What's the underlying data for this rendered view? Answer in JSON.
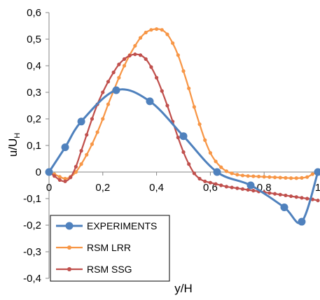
{
  "chart_data": {
    "type": "line",
    "xlabel": "y/H",
    "ylabel": {
      "main": "u/U",
      "sub": "H"
    },
    "xlim": [
      0,
      1
    ],
    "ylim": [
      -0.4,
      0.6
    ],
    "grid": "none",
    "legend_position": "bottom-left",
    "x_ticks": [
      {
        "v": 0,
        "label": "0"
      },
      {
        "v": 0.2,
        "label": "0,2"
      },
      {
        "v": 0.4,
        "label": "0,4"
      },
      {
        "v": 0.6,
        "label": "0,6"
      },
      {
        "v": 0.8,
        "label": "0,8"
      },
      {
        "v": 1,
        "label": "1"
      }
    ],
    "y_ticks": [
      {
        "v": 0.6,
        "label": "0,6"
      },
      {
        "v": 0.5,
        "label": "0,5"
      },
      {
        "v": 0.4,
        "label": "0,4"
      },
      {
        "v": 0.3,
        "label": "0,3"
      },
      {
        "v": 0.2,
        "label": "0,2"
      },
      {
        "v": 0.1,
        "label": "0,1"
      },
      {
        "v": 0,
        "label": "0"
      },
      {
        "v": -0.1,
        "label": "-0,1"
      },
      {
        "v": -0.2,
        "label": "-0,2"
      },
      {
        "v": -0.3,
        "label": "-0,3"
      },
      {
        "v": -0.4,
        "label": "-0,4"
      }
    ],
    "series": [
      {
        "name": "EXPERIMENTS",
        "color": "#4f81bd",
        "marker_size": "large",
        "x": [
          0,
          0.06,
          0.12,
          0.25,
          0.375,
          0.5,
          0.625,
          0.75,
          0.875,
          0.94,
          1.0
        ],
        "y": [
          0.0,
          0.093,
          0.19,
          0.308,
          0.266,
          0.135,
          0.0,
          -0.05,
          -0.133,
          -0.187,
          0.0
        ]
      },
      {
        "name": "RSM LRR",
        "color": "#f79646",
        "marker_size": "small",
        "x": [
          0,
          0.02,
          0.04,
          0.06,
          0.08,
          0.1,
          0.12,
          0.14,
          0.16,
          0.18,
          0.2,
          0.22,
          0.24,
          0.26,
          0.28,
          0.3,
          0.32,
          0.34,
          0.36,
          0.38,
          0.4,
          0.42,
          0.44,
          0.46,
          0.48,
          0.5,
          0.52,
          0.54,
          0.56,
          0.58,
          0.6,
          0.62,
          0.64,
          0.66,
          0.68,
          0.7,
          0.72,
          0.74,
          0.76,
          0.78,
          0.8,
          0.82,
          0.84,
          0.86,
          0.88,
          0.9,
          0.92,
          0.94,
          0.96,
          0.98,
          1.0
        ],
        "y": [
          0.0,
          -0.008,
          -0.018,
          -0.025,
          -0.018,
          0.0,
          0.03,
          0.065,
          0.105,
          0.15,
          0.2,
          0.255,
          0.305,
          0.355,
          0.4,
          0.44,
          0.475,
          0.505,
          0.525,
          0.535,
          0.538,
          0.535,
          0.518,
          0.485,
          0.44,
          0.38,
          0.315,
          0.245,
          0.18,
          0.12,
          0.072,
          0.04,
          0.018,
          0.003,
          -0.005,
          -0.01,
          -0.013,
          -0.015,
          -0.016,
          -0.017,
          -0.018,
          -0.019,
          -0.02,
          -0.021,
          -0.022,
          -0.023,
          -0.023,
          -0.022,
          -0.019,
          -0.008,
          0.0
        ]
      },
      {
        "name": "RSM SSG",
        "color": "#c0504d",
        "marker_size": "small",
        "x": [
          0,
          0.02,
          0.04,
          0.06,
          0.08,
          0.1,
          0.12,
          0.14,
          0.16,
          0.18,
          0.2,
          0.22,
          0.24,
          0.26,
          0.28,
          0.3,
          0.32,
          0.34,
          0.36,
          0.38,
          0.4,
          0.42,
          0.44,
          0.46,
          0.48,
          0.5,
          0.52,
          0.54,
          0.56,
          0.58,
          0.6,
          0.62,
          0.64,
          0.66,
          0.68,
          0.7,
          0.72,
          0.74,
          0.76,
          0.78,
          0.8,
          0.82,
          0.84,
          0.86,
          0.88,
          0.9,
          0.92,
          0.94,
          0.96,
          0.98,
          1.0
        ],
        "y": [
          0.0,
          -0.015,
          -0.03,
          -0.035,
          -0.02,
          0.02,
          0.08,
          0.14,
          0.2,
          0.255,
          0.3,
          0.34,
          0.375,
          0.405,
          0.425,
          0.438,
          0.443,
          0.44,
          0.425,
          0.395,
          0.355,
          0.305,
          0.25,
          0.19,
          0.13,
          0.075,
          0.03,
          -0.005,
          -0.025,
          -0.035,
          -0.04,
          -0.045,
          -0.05,
          -0.055,
          -0.058,
          -0.061,
          -0.064,
          -0.067,
          -0.07,
          -0.073,
          -0.076,
          -0.079,
          -0.082,
          -0.085,
          -0.088,
          -0.091,
          -0.094,
          -0.097,
          -0.1,
          -0.103,
          -0.107
        ]
      }
    ]
  }
}
